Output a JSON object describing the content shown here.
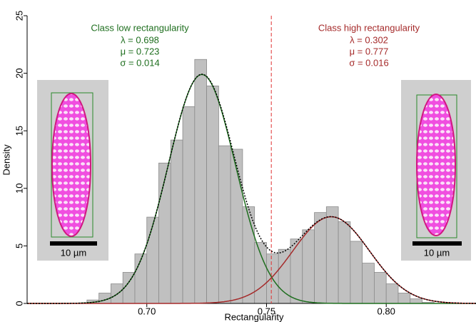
{
  "chart_data": {
    "type": "histogram",
    "x_label": "Rectangularity",
    "y_label": "Density",
    "bins": [
      0.675,
      0.68,
      0.685,
      0.69,
      0.695,
      0.7,
      0.705,
      0.71,
      0.715,
      0.72,
      0.725,
      0.73,
      0.735,
      0.74,
      0.745,
      0.75,
      0.755,
      0.76,
      0.765,
      0.77,
      0.775,
      0.78,
      0.785,
      0.79,
      0.795,
      0.8,
      0.805,
      0.81,
      0.815,
      0.82
    ],
    "values": [
      0.3,
      0.9,
      1.7,
      2.7,
      4.3,
      7.5,
      12.2,
      14.2,
      17.1,
      21.2,
      18.9,
      13.7,
      13.4,
      8.4,
      5.3,
      4.3,
      4.7,
      5.6,
      6.4,
      7.9,
      8.4,
      7.1,
      5.4,
      3.5,
      2.7,
      1.7,
      0.9,
      0.4,
      0.1
    ],
    "color": "#c0c0c0",
    "components": [
      {
        "name": "Class low rectangularity",
        "color": "#1e6e1e",
        "values": [
          0.698,
          0.723,
          0.014
        ],
        "value_labels": [
          "λ = 0.698",
          "μ = 0.723",
          "σ = 0.014"
        ]
      },
      {
        "name": "Class high rectangularity",
        "color": "#a52a2a",
        "values": [
          0.302,
          0.777,
          0.016
        ],
        "value_labels": [
          "λ = 0.302",
          "μ = 0.777",
          "σ = 0.016"
        ]
      }
    ],
    "threshold": 0.752,
    "xlim": [
      0.65,
      0.8375
    ],
    "ylim": [
      0,
      25
    ],
    "xticks": [
      {
        "value": 0.7,
        "label": "0.70"
      },
      {
        "value": 0.75,
        "label": "0.75"
      },
      {
        "value": 0.8,
        "label": "0.80"
      }
    ],
    "yticks": [
      0,
      5,
      10,
      15,
      20,
      25
    ],
    "annotations": [
      "10 µm",
      "10 µm"
    ]
  }
}
